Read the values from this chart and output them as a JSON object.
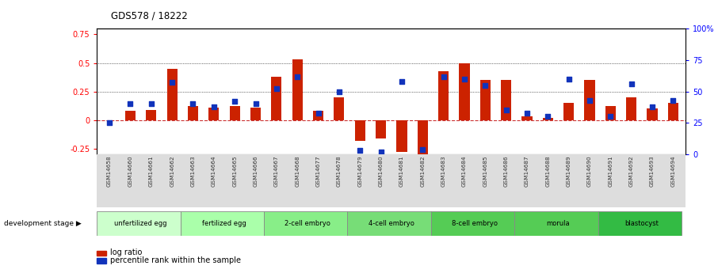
{
  "title": "GDS578 / 18222",
  "samples": [
    "GSM14658",
    "GSM14660",
    "GSM14661",
    "GSM14662",
    "GSM14663",
    "GSM14664",
    "GSM14665",
    "GSM14666",
    "GSM14667",
    "GSM14668",
    "GSM14677",
    "GSM14678",
    "GSM14679",
    "GSM14680",
    "GSM14681",
    "GSM14682",
    "GSM14683",
    "GSM14684",
    "GSM14685",
    "GSM14686",
    "GSM14687",
    "GSM14688",
    "GSM14689",
    "GSM14690",
    "GSM14691",
    "GSM14692",
    "GSM14693",
    "GSM14694"
  ],
  "log_ratio": [
    0.0,
    0.08,
    0.09,
    0.45,
    0.12,
    0.11,
    0.12,
    0.11,
    0.38,
    0.53,
    0.08,
    0.2,
    -0.18,
    -0.16,
    -0.28,
    -0.3,
    0.43,
    0.5,
    0.35,
    0.35,
    0.03,
    0.02,
    0.15,
    0.35,
    0.12,
    0.2,
    0.1,
    0.15
  ],
  "percentile_raw": [
    25,
    40,
    40,
    57,
    40,
    38,
    42,
    40,
    52,
    62,
    33,
    50,
    3,
    2,
    58,
    4,
    62,
    60,
    55,
    35,
    33,
    30,
    60,
    43,
    30,
    56,
    38,
    43
  ],
  "stages": [
    {
      "label": "unfertilized egg",
      "start": 0,
      "end": 4,
      "color": "#ccffcc"
    },
    {
      "label": "fertilized egg",
      "start": 4,
      "end": 8,
      "color": "#aaffaa"
    },
    {
      "label": "2-cell embryo",
      "start": 8,
      "end": 12,
      "color": "#88ee88"
    },
    {
      "label": "4-cell embryo",
      "start": 12,
      "end": 16,
      "color": "#77dd77"
    },
    {
      "label": "8-cell embryo",
      "start": 16,
      "end": 20,
      "color": "#55cc55"
    },
    {
      "label": "morula",
      "start": 20,
      "end": 24,
      "color": "#55cc55"
    },
    {
      "label": "blastocyst",
      "start": 24,
      "end": 28,
      "color": "#33bb44"
    }
  ],
  "ylim_left": [
    -0.3,
    0.8
  ],
  "bar_color": "#cc2200",
  "dot_color": "#1133bb",
  "hline_zero_color": "#cc3333",
  "background_color": "#ffffff",
  "left_yticks": [
    -0.25,
    0.0,
    0.25,
    0.5,
    0.75
  ],
  "left_yticklabels": [
    "-0.25",
    "0",
    "0.25",
    "0.5",
    "0.75"
  ],
  "right_yticks": [
    0,
    25,
    50,
    75,
    100
  ],
  "right_yticklabels": [
    "0",
    "25",
    "50",
    "75",
    "100%"
  ]
}
